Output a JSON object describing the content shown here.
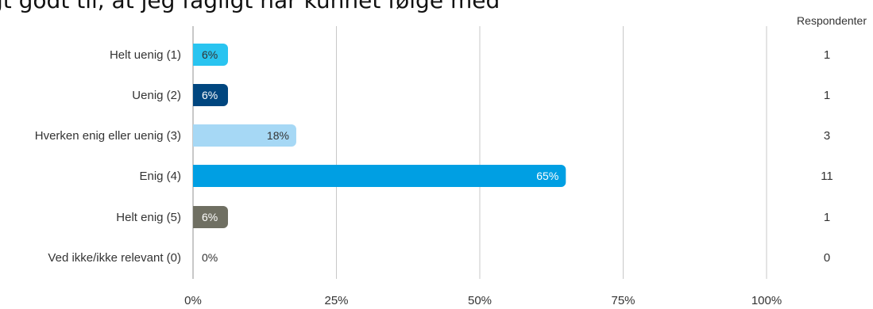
{
  "chart_data": {
    "type": "bar",
    "orientation": "horizontal",
    "title": "gt godt til, at jeg fagligt har kunnet følge med",
    "categories": [
      "Helt uenig (1)",
      "Uenig (2)",
      "Hverken enig eller uenig (3)",
      "Enig (4)",
      "Helt enig (5)",
      "Ved ikke/ikke relevant (0)"
    ],
    "values": [
      6,
      6,
      18,
      65,
      6,
      0
    ],
    "value_labels": [
      "6%",
      "6%",
      "18%",
      "65%",
      "6%",
      "0%"
    ],
    "colors": [
      "#29c4f0",
      "#00467f",
      "#a6d8f5",
      "#009fe3",
      "#6f6f62",
      "#cccccc"
    ],
    "label_colors": [
      "#333333",
      "#ffffff",
      "#333333",
      "#ffffff",
      "#ffffff",
      "#333333"
    ],
    "xlim": [
      0,
      100
    ],
    "x_ticks": [
      0,
      25,
      50,
      75,
      100
    ],
    "x_tick_labels": [
      "0%",
      "25%",
      "50%",
      "75%",
      "100%"
    ],
    "grid": true,
    "respondents_header": "Respondenter",
    "respondents": [
      "1",
      "1",
      "3",
      "11",
      "1",
      "0"
    ]
  }
}
